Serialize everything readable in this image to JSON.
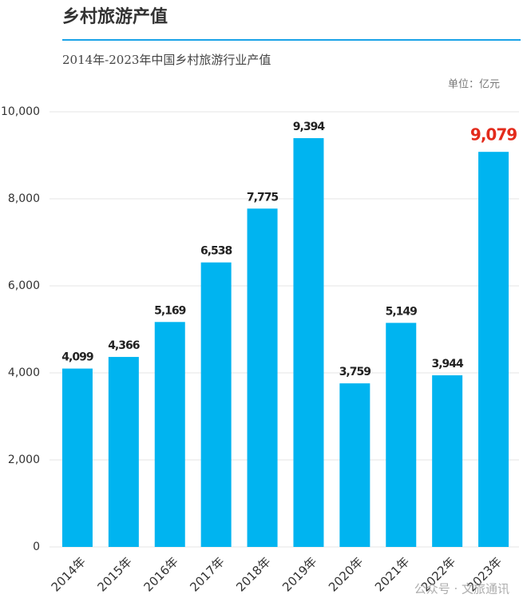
{
  "chart_data": {
    "type": "bar",
    "title": "乡村旅游产值",
    "subtitle": "2014年-2023年中国乡村旅游行业产值",
    "unit_note": "单位：亿元",
    "watermark": "公众号 · 文旅通讯",
    "categories": [
      "2014年",
      "2015年",
      "2016年",
      "2017年",
      "2018年",
      "2019年",
      "2020年",
      "2021年",
      "2022年",
      "2023年"
    ],
    "values": [
      4099,
      4366,
      5169,
      6538,
      7775,
      9394,
      3759,
      5149,
      3944,
      9079
    ],
    "value_labels": [
      "4,099",
      "4,366",
      "5,169",
      "6,538",
      "7,775",
      "9,394",
      "3,759",
      "5,149",
      "3,944",
      "9,079"
    ],
    "value_label_colors": [
      "#222222",
      "#222222",
      "#222222",
      "#222222",
      "#222222",
      "#222222",
      "#222222",
      "#222222",
      "#222222",
      "#e32b1c"
    ],
    "color": "#00b4f0",
    "ylim": [
      0,
      10000
    ],
    "yticks": [
      0,
      {
        "value": 2000,
        "label": "2,000"
      },
      {
        "value": 4000,
        "label": "4,000"
      },
      {
        "value": 6000,
        "label": "6,000"
      },
      {
        "value": 8000,
        "label": "8,000"
      },
      {
        "value": 10000,
        "label": "10,000"
      }
    ],
    "grid": true
  }
}
